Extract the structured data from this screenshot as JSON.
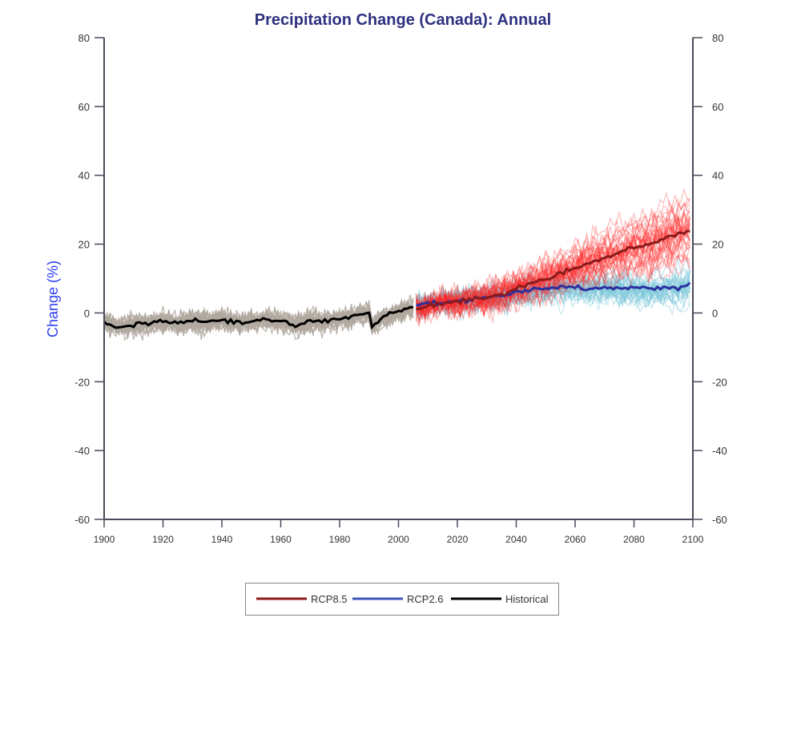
{
  "chart_data": {
    "type": "line",
    "title": "Precipitation Change (Canada): Annual",
    "xlabel": "",
    "ylabel": "Change (%)",
    "xlim": [
      1900,
      2100
    ],
    "ylim": [
      -60,
      80
    ],
    "xticks": [
      1900,
      1920,
      1940,
      1960,
      1980,
      2000,
      2020,
      2040,
      2060,
      2080,
      2100
    ],
    "yticks": [
      80,
      60,
      40,
      20,
      0,
      -20,
      -40,
      -60
    ],
    "grid": false,
    "legend_position": "bottom-center",
    "series": [
      {
        "name": "RCP8.5",
        "color": "#8b1a1a",
        "ensemble_color": "#ff2020",
        "x": [
          2006,
          2010,
          2015,
          2020,
          2025,
          2030,
          2035,
          2040,
          2045,
          2050,
          2055,
          2060,
          2065,
          2070,
          2075,
          2080,
          2085,
          2090,
          2095,
          2099
        ],
        "values": [
          1.5,
          2,
          3,
          3,
          4,
          4.5,
          5.5,
          7,
          8.5,
          10,
          11.5,
          13,
          14.5,
          16,
          17.5,
          19,
          20,
          21.5,
          23,
          24
        ]
      },
      {
        "name": "RCP2.6",
        "color": "#2b2fa0",
        "legend_color": "#3b55b8",
        "ensemble_color": "#7cc7d9",
        "x": [
          2006,
          2010,
          2015,
          2020,
          2025,
          2030,
          2035,
          2040,
          2045,
          2050,
          2055,
          2060,
          2065,
          2070,
          2075,
          2080,
          2085,
          2090,
          2095,
          2099
        ],
        "values": [
          2,
          3,
          3,
          3.5,
          4,
          4.5,
          5,
          6,
          7,
          7,
          7.5,
          7.5,
          7,
          7.5,
          7,
          7.5,
          7,
          7.5,
          7,
          8.5
        ]
      },
      {
        "name": "Historical",
        "color": "#000000",
        "ensemble_color": "#b0a89e",
        "x": [
          1900,
          1905,
          1910,
          1915,
          1920,
          1925,
          1930,
          1935,
          1940,
          1945,
          1950,
          1955,
          1960,
          1965,
          1970,
          1975,
          1980,
          1985,
          1990,
          1991,
          1995,
          2000,
          2005
        ],
        "values": [
          -3,
          -4,
          -3.5,
          -3,
          -2.5,
          -3,
          -2,
          -2.5,
          -2,
          -3,
          -2.5,
          -2,
          -2.5,
          -3.5,
          -2.5,
          -2.5,
          -1.5,
          -1,
          0,
          -4,
          -1,
          0.5,
          1.5
        ]
      }
    ]
  }
}
